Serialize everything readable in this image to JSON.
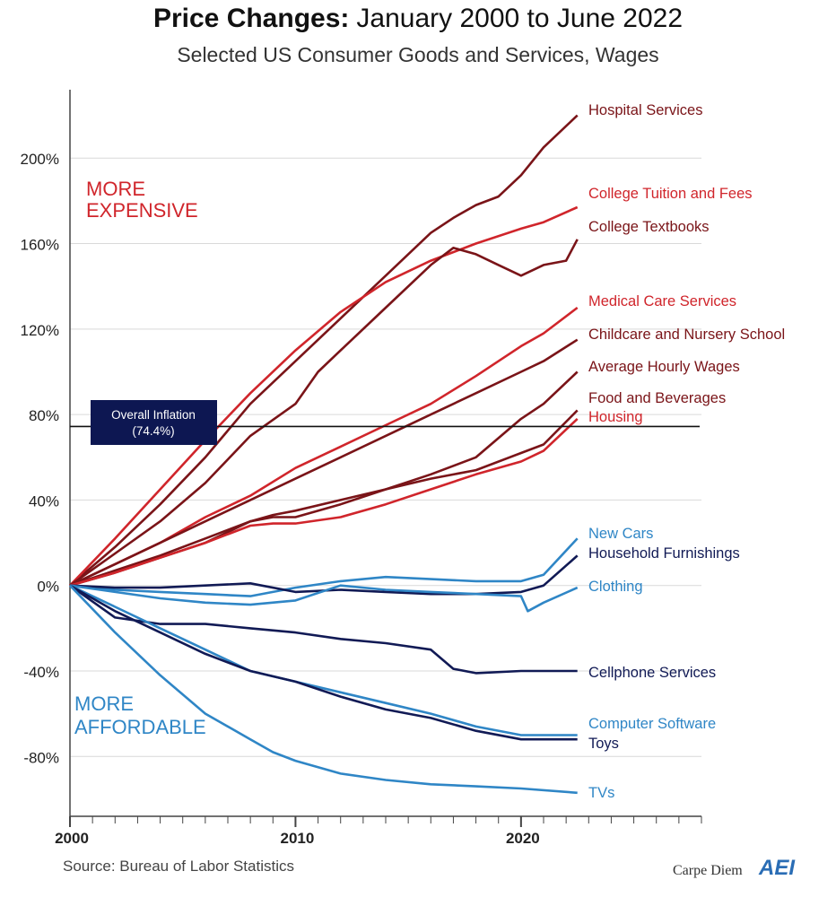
{
  "header": {
    "title_bold": "Price Changes:",
    "title_rest": "January 2000 to June 2022",
    "subtitle": "Selected US Consumer Goods and Services, Wages"
  },
  "annotations": {
    "more_expensive_1": "MORE",
    "more_expensive_2": "EXPENSIVE",
    "more_affordable_1": "MORE",
    "more_affordable_2": "AFFORDABLE",
    "inflation_1": "Overall Inflation",
    "inflation_2": "(74.4%)"
  },
  "footer": {
    "source": "Source: Bureau of Labor Statistics",
    "brand": "Carpe Diem",
    "logo": "AEI"
  },
  "colors": {
    "red": "#d0252b",
    "darkred": "#7a1418",
    "blue": "#2f86c6",
    "navy": "#111a55",
    "inflation_box": "#0d1752"
  },
  "chart_data": {
    "type": "line",
    "title": "Price Changes: January 2000 to June 2022",
    "subtitle": "Selected US Consumer Goods and Services, Wages",
    "xlabel": "",
    "ylabel": "",
    "x_ticks": [
      "2000",
      "2010",
      "2020"
    ],
    "y_ticks": [
      "200%",
      "160%",
      "120%",
      "80%",
      "40%",
      "0%",
      "-40%",
      "-80%"
    ],
    "y_tick_values": [
      200,
      160,
      120,
      80,
      40,
      0,
      -40,
      -80
    ],
    "xlim": [
      2000,
      2028
    ],
    "ylim": [
      -108,
      232
    ],
    "grid": true,
    "reference_line": {
      "label": "Overall Inflation",
      "value_label": "(74.4%)",
      "value": 74.4
    },
    "series": [
      {
        "name": "Hospital Services",
        "color_key": "darkred",
        "x": [
          2000,
          2002,
          2004,
          2006,
          2008,
          2010,
          2012,
          2014,
          2016,
          2017,
          2018,
          2019,
          2020,
          2021,
          2022.5
        ],
        "y": [
          0,
          18,
          38,
          60,
          85,
          105,
          125,
          145,
          165,
          172,
          178,
          182,
          192,
          205,
          220
        ]
      },
      {
        "name": "College Tuition and Fees",
        "color_key": "red",
        "x": [
          2000,
          2002,
          2004,
          2006,
          2008,
          2010,
          2012,
          2014,
          2016,
          2018,
          2020,
          2021,
          2022.5
        ],
        "y": [
          0,
          22,
          45,
          68,
          90,
          110,
          128,
          142,
          152,
          160,
          167,
          170,
          177
        ]
      },
      {
        "name": "College Textbooks",
        "color_key": "darkred",
        "x": [
          2000,
          2002,
          2004,
          2006,
          2008,
          2010,
          2011,
          2012,
          2014,
          2016,
          2017,
          2018,
          2019,
          2020,
          2021,
          2022,
          2022.5
        ],
        "y": [
          0,
          15,
          30,
          48,
          70,
          85,
          100,
          110,
          130,
          150,
          158,
          155,
          150,
          145,
          150,
          152,
          162
        ]
      },
      {
        "name": "Medical Care Services",
        "color_key": "red",
        "x": [
          2000,
          2002,
          2004,
          2006,
          2008,
          2010,
          2012,
          2014,
          2016,
          2018,
          2020,
          2021,
          2022.5
        ],
        "y": [
          0,
          10,
          20,
          32,
          42,
          55,
          65,
          75,
          85,
          98,
          112,
          118,
          130
        ]
      },
      {
        "name": "Childcare and Nursery School",
        "color_key": "darkred",
        "x": [
          2000,
          2002,
          2004,
          2006,
          2008,
          2010,
          2012,
          2014,
          2016,
          2018,
          2020,
          2021,
          2022.5
        ],
        "y": [
          0,
          10,
          20,
          30,
          40,
          50,
          60,
          70,
          80,
          90,
          100,
          105,
          115
        ]
      },
      {
        "name": "Average Hourly Wages",
        "color_key": "darkred",
        "x": [
          2000,
          2002,
          2004,
          2006,
          2008,
          2009,
          2010,
          2012,
          2014,
          2016,
          2018,
          2020,
          2021,
          2022.5
        ],
        "y": [
          0,
          7,
          14,
          22,
          30,
          33,
          35,
          40,
          45,
          52,
          60,
          78,
          85,
          100
        ]
      },
      {
        "name": "Food and Beverages",
        "color_key": "darkred",
        "x": [
          2000,
          2002,
          2004,
          2006,
          2008,
          2009,
          2010,
          2012,
          2014,
          2016,
          2018,
          2020,
          2021,
          2022.5
        ],
        "y": [
          0,
          6,
          13,
          20,
          30,
          32,
          32,
          38,
          45,
          50,
          54,
          62,
          66,
          82
        ]
      },
      {
        "name": "Housing",
        "color_key": "red",
        "x": [
          2000,
          2002,
          2004,
          2006,
          2008,
          2009,
          2010,
          2012,
          2014,
          2016,
          2018,
          2020,
          2021,
          2022.5
        ],
        "y": [
          0,
          6,
          13,
          20,
          28,
          29,
          29,
          32,
          38,
          45,
          52,
          58,
          63,
          78
        ]
      },
      {
        "name": "New Cars",
        "color_key": "blue",
        "x": [
          2000,
          2002,
          2004,
          2006,
          2008,
          2010,
          2012,
          2014,
          2016,
          2018,
          2020,
          2021,
          2022.5
        ],
        "y": [
          0,
          -2,
          -3,
          -4,
          -5,
          -1,
          2,
          4,
          3,
          2,
          2,
          5,
          22
        ]
      },
      {
        "name": "Household Furnishings",
        "color_key": "navy",
        "x": [
          2000,
          2002,
          2004,
          2006,
          2008,
          2010,
          2012,
          2014,
          2016,
          2018,
          2020,
          2021,
          2022.5
        ],
        "y": [
          0,
          -1,
          -1,
          0,
          1,
          -3,
          -2,
          -3,
          -4,
          -4,
          -3,
          0,
          14
        ]
      },
      {
        "name": "Clothing",
        "color_key": "blue",
        "x": [
          2000,
          2002,
          2004,
          2006,
          2008,
          2010,
          2012,
          2014,
          2016,
          2018,
          2020,
          2020.3,
          2021,
          2022.5
        ],
        "y": [
          0,
          -3,
          -6,
          -8,
          -9,
          -7,
          0,
          -2,
          -3,
          -4,
          -5,
          -12,
          -8,
          -1
        ]
      },
      {
        "name": "Cellphone Services",
        "color_key": "navy",
        "x": [
          2000,
          2002,
          2004,
          2006,
          2008,
          2010,
          2012,
          2014,
          2016,
          2017,
          2018,
          2020,
          2022.5
        ],
        "y": [
          0,
          -15,
          -18,
          -18,
          -20,
          -22,
          -25,
          -27,
          -30,
          -39,
          -41,
          -40,
          -40
        ]
      },
      {
        "name": "Computer Software",
        "color_key": "blue",
        "x": [
          2000,
          2002,
          2004,
          2006,
          2008,
          2010,
          2012,
          2014,
          2016,
          2018,
          2020,
          2022.5
        ],
        "y": [
          0,
          -10,
          -20,
          -30,
          -40,
          -45,
          -50,
          -55,
          -60,
          -66,
          -70,
          -70
        ]
      },
      {
        "name": "Toys",
        "color_key": "navy",
        "x": [
          2000,
          2002,
          2004,
          2006,
          2008,
          2010,
          2012,
          2014,
          2016,
          2018,
          2020,
          2022.5
        ],
        "y": [
          0,
          -12,
          -22,
          -32,
          -40,
          -45,
          -52,
          -58,
          -62,
          -68,
          -72,
          -72
        ]
      },
      {
        "name": "TVs",
        "color_key": "blue",
        "x": [
          2000,
          2002,
          2004,
          2006,
          2008,
          2009,
          2010,
          2012,
          2014,
          2016,
          2018,
          2020,
          2022.5
        ],
        "y": [
          0,
          -22,
          -42,
          -60,
          -72,
          -78,
          -82,
          -88,
          -91,
          -93,
          -94,
          -95,
          -97
        ]
      }
    ]
  }
}
